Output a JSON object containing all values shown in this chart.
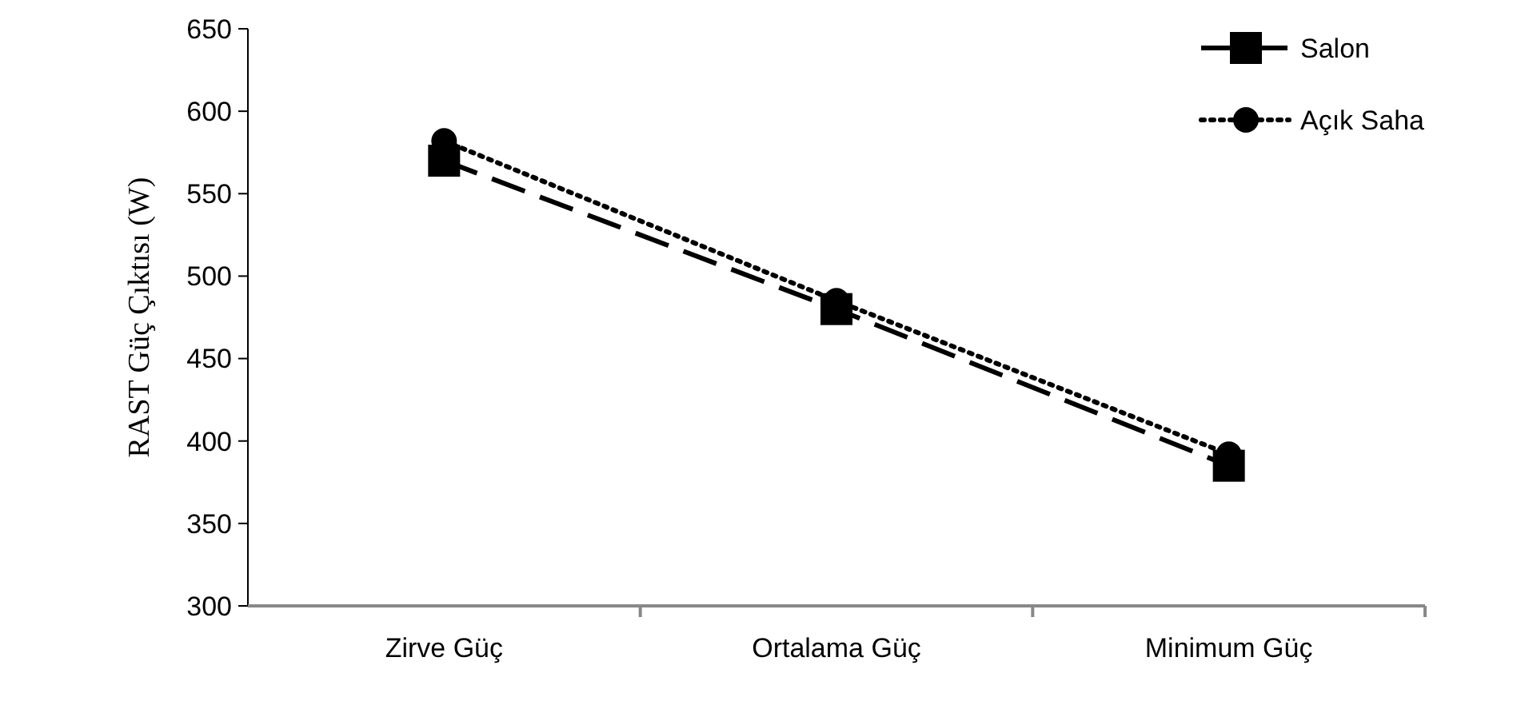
{
  "chart_data": {
    "type": "line",
    "ylabel": "RAST Güç Çıktısı (W)",
    "categories": [
      "Zirve Güç",
      "Ortalama Güç",
      "Minimum Güç"
    ],
    "series": [
      {
        "name": "Salon",
        "color": "#000000",
        "values": [
          570,
          480,
          385
        ],
        "marker": "square",
        "line_style": "dashed"
      },
      {
        "name": "Açık Saha",
        "color": "#000000",
        "values": [
          582,
          485,
          392
        ],
        "marker": "circle",
        "line_style": "dotted"
      }
    ],
    "ylim": [
      300,
      650
    ],
    "yticks": [
      300,
      350,
      400,
      450,
      500,
      550,
      600,
      650
    ],
    "grid": false,
    "legend": "top right"
  }
}
